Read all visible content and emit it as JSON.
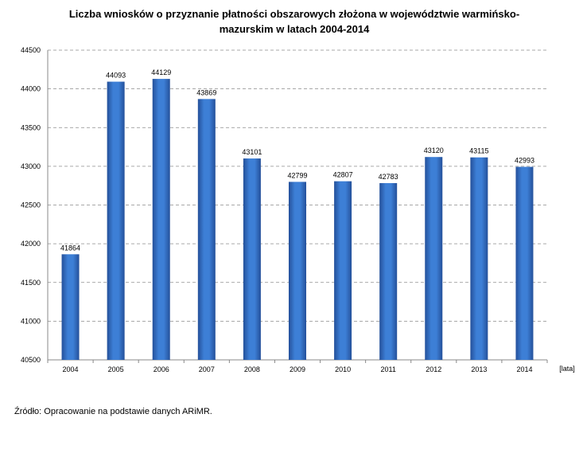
{
  "chart_data": {
    "type": "bar",
    "title_line1": "Liczba wniosków o przyznanie płatności obszarowych złożona w województwie warmińsko-",
    "title_line2": "mazurskim w latach 2004-2014",
    "xlabel": "[lata]",
    "ylabel": "",
    "categories": [
      "2004",
      "2005",
      "2006",
      "2007",
      "2008",
      "2009",
      "2010",
      "2011",
      "2012",
      "2013",
      "2014"
    ],
    "values": [
      41864,
      44093,
      44129,
      43869,
      43101,
      42799,
      42807,
      42783,
      43120,
      43115,
      42993
    ],
    "ylim": [
      40500,
      44500
    ],
    "yticks": [
      40500,
      41000,
      41500,
      42000,
      42500,
      43000,
      43500,
      44000,
      44500
    ],
    "grid": true,
    "legend": "none",
    "bar_color": "#3d7fd6",
    "bar_color_dark": "#24509a"
  },
  "source": "Źródło: Opracowanie na podstawie danych ARiMR."
}
